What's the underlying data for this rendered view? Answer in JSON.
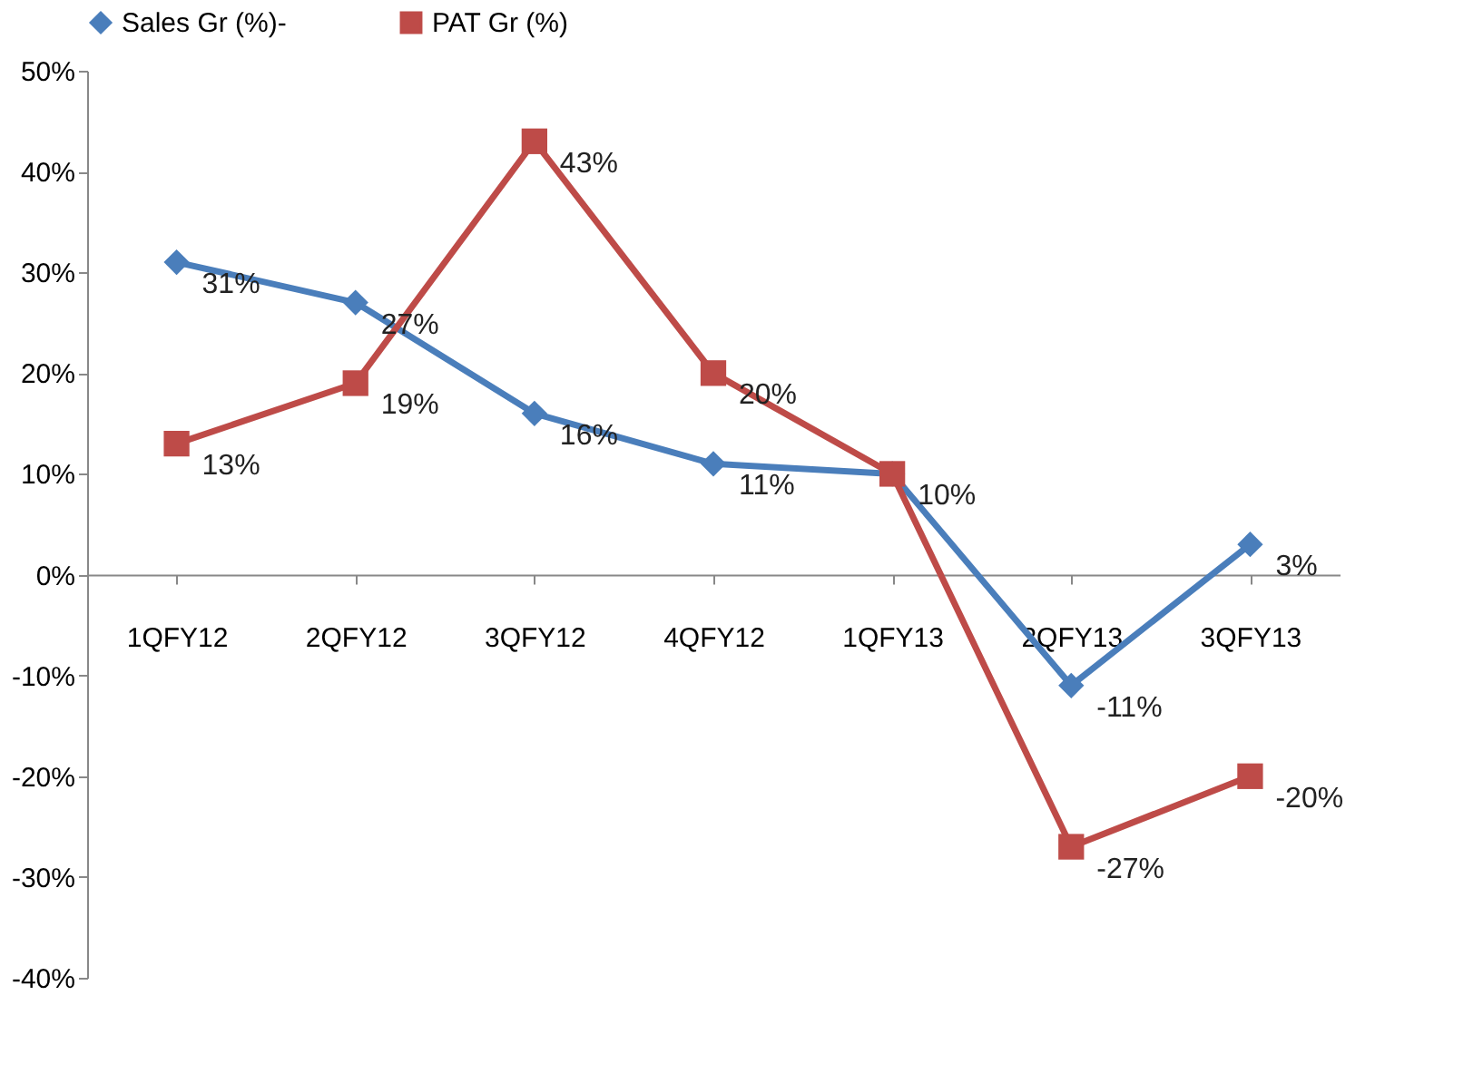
{
  "chart_data": {
    "type": "line",
    "categories": [
      "1QFY12",
      "2QFY12",
      "3QFY12",
      "4QFY12",
      "1QFY13",
      "2QFY13",
      "3QFY13"
    ],
    "series": [
      {
        "name": "Sales Gr (%)-",
        "color": "#4a7ebb",
        "marker": "diamond",
        "values": [
          31,
          27,
          16,
          11,
          10,
          -11,
          3
        ],
        "value_labels": [
          "31%",
          "27%",
          "16%",
          "11%",
          "10%",
          "-11%",
          "3%"
        ]
      },
      {
        "name": "PAT Gr (%)",
        "color": "#be4b48",
        "marker": "square",
        "values": [
          13,
          19,
          43,
          20,
          10,
          -27,
          -20
        ],
        "value_labels": [
          "13%",
          "19%",
          "43%",
          "20%",
          null,
          "-27%",
          "-20%"
        ]
      }
    ],
    "ylim": [
      -40,
      50
    ],
    "yticks": [
      {
        "value": -40,
        "label": "-40%"
      },
      {
        "value": -30,
        "label": "-30%"
      },
      {
        "value": -20,
        "label": "-20%"
      },
      {
        "value": -10,
        "label": "-10%"
      },
      {
        "value": 0,
        "label": "0%"
      },
      {
        "value": 10,
        "label": "10%"
      },
      {
        "value": 20,
        "label": "20%"
      },
      {
        "value": 30,
        "label": "30%"
      },
      {
        "value": 40,
        "label": "40%"
      },
      {
        "value": 50,
        "label": "50%"
      }
    ],
    "legend": "top",
    "grid": false,
    "line_style": "solid"
  }
}
